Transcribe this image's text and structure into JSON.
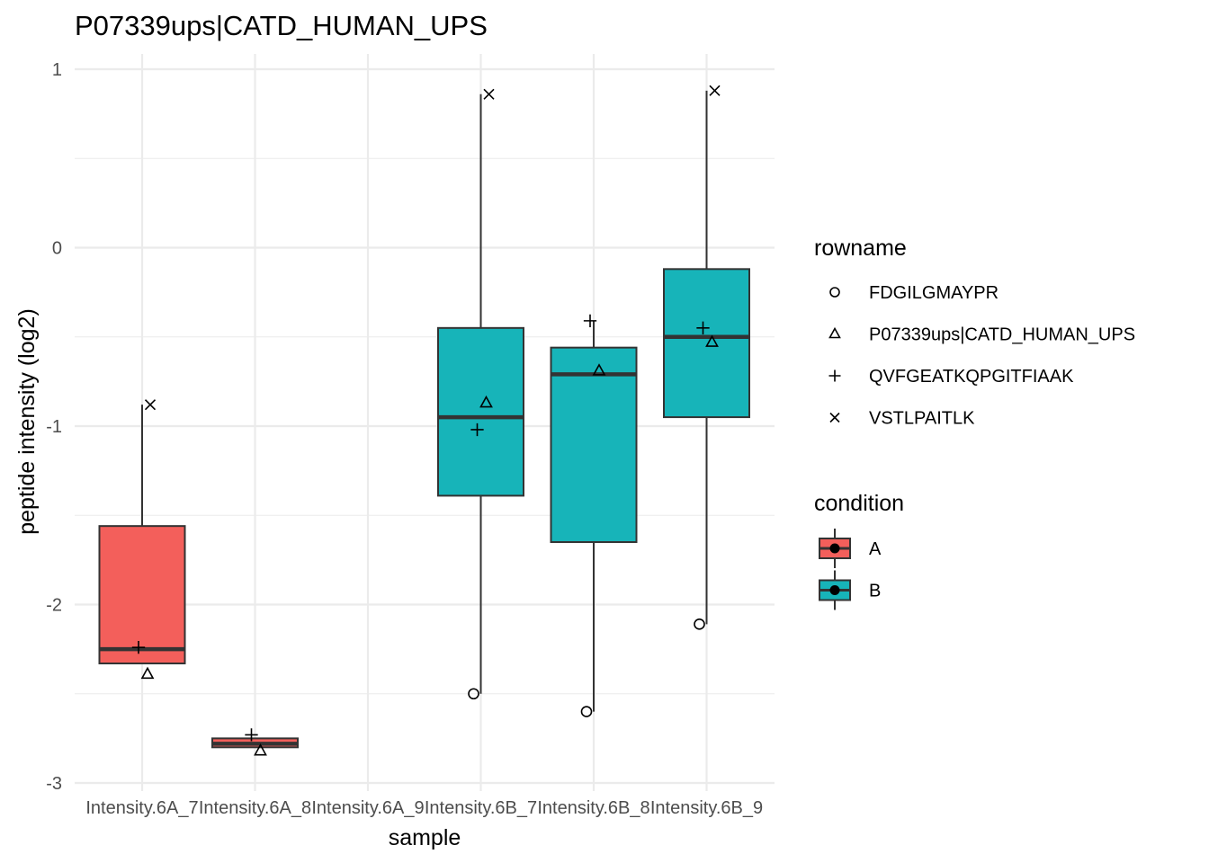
{
  "chart_data": {
    "type": "box",
    "title": "P07339ups|CATD_HUMAN_UPS",
    "xlabel": "sample",
    "ylabel": "peptide intensity (log2)",
    "categories": [
      "Intensity.6A_7",
      "Intensity.6A_8",
      "Intensity.6A_9",
      "Intensity.6B_7",
      "Intensity.6B_8",
      "Intensity.6B_9"
    ],
    "ylim": [
      -3.0,
      1.0
    ],
    "yticks": [
      -3,
      -2,
      -1,
      0,
      1
    ],
    "grid": true,
    "boxes": [
      {
        "category": "Intensity.6A_7",
        "condition": "A",
        "q1": -2.33,
        "median": -2.25,
        "q3": -1.56,
        "whisker_low": -2.33,
        "whisker_high": -0.88
      },
      {
        "category": "Intensity.6A_8",
        "condition": "A",
        "q1": -2.8,
        "median": -2.78,
        "q3": -2.75,
        "whisker_low": -2.8,
        "whisker_high": -2.75
      },
      {
        "category": "Intensity.6B_7",
        "condition": "B",
        "q1": -1.39,
        "median": -0.95,
        "q3": -0.45,
        "whisker_low": -2.5,
        "whisker_high": 0.86
      },
      {
        "category": "Intensity.6B_8",
        "condition": "B",
        "q1": -1.65,
        "median": -0.71,
        "q3": -0.56,
        "whisker_low": -2.6,
        "whisker_high": -0.41
      },
      {
        "category": "Intensity.6B_9",
        "condition": "B",
        "q1": -0.95,
        "median": -0.5,
        "q3": -0.12,
        "whisker_low": -2.11,
        "whisker_high": 0.88
      }
    ],
    "points": [
      {
        "category": "Intensity.6A_7",
        "rowname": "VSTLPAITLK",
        "y": -0.88
      },
      {
        "category": "Intensity.6A_7",
        "rowname": "QVFGEATKQPGITFIAAK",
        "y": -2.24
      },
      {
        "category": "Intensity.6A_7",
        "rowname": "P07339ups|CATD_HUMAN_UPS",
        "y": -2.39
      },
      {
        "category": "Intensity.6A_8",
        "rowname": "QVFGEATKQPGITFIAAK",
        "y": -2.73
      },
      {
        "category": "Intensity.6A_8",
        "rowname": "P07339ups|CATD_HUMAN_UPS",
        "y": -2.82
      },
      {
        "category": "Intensity.6B_7",
        "rowname": "VSTLPAITLK",
        "y": 0.86
      },
      {
        "category": "Intensity.6B_7",
        "rowname": "P07339ups|CATD_HUMAN_UPS",
        "y": -0.87
      },
      {
        "category": "Intensity.6B_7",
        "rowname": "QVFGEATKQPGITFIAAK",
        "y": -1.02
      },
      {
        "category": "Intensity.6B_7",
        "rowname": "FDGILGMAYPR",
        "y": -2.5
      },
      {
        "category": "Intensity.6B_8",
        "rowname": "QVFGEATKQPGITFIAAK",
        "y": -0.41
      },
      {
        "category": "Intensity.6B_8",
        "rowname": "P07339ups|CATD_HUMAN_UPS",
        "y": -0.69
      },
      {
        "category": "Intensity.6B_8",
        "rowname": "FDGILGMAYPR",
        "y": -2.6
      },
      {
        "category": "Intensity.6B_9",
        "rowname": "VSTLPAITLK",
        "y": 0.88
      },
      {
        "category": "Intensity.6B_9",
        "rowname": "QVFGEATKQPGITFIAAK",
        "y": -0.45
      },
      {
        "category": "Intensity.6B_9",
        "rowname": "P07339ups|CATD_HUMAN_UPS",
        "y": -0.53
      },
      {
        "category": "Intensity.6B_9",
        "rowname": "FDGILGMAYPR",
        "y": -2.11
      }
    ],
    "legend": {
      "placement": "right",
      "rowname": {
        "title": "rowname",
        "entries": [
          {
            "label": "FDGILGMAYPR",
            "shape": "circle"
          },
          {
            "label": "P07339ups|CATD_HUMAN_UPS",
            "shape": "triangle"
          },
          {
            "label": "QVFGEATKQPGITFIAAK",
            "shape": "plus"
          },
          {
            "label": "VSTLPAITLK",
            "shape": "cross"
          }
        ]
      },
      "condition": {
        "title": "condition",
        "entries": [
          {
            "label": "A",
            "color": "#F8766D"
          },
          {
            "label": "B",
            "color": "#00BFC4"
          }
        ]
      }
    },
    "colors": {
      "A": "#F35F5B",
      "B": "#17B4B9",
      "grid": "#EBEBEB",
      "outline": "#333333"
    }
  }
}
